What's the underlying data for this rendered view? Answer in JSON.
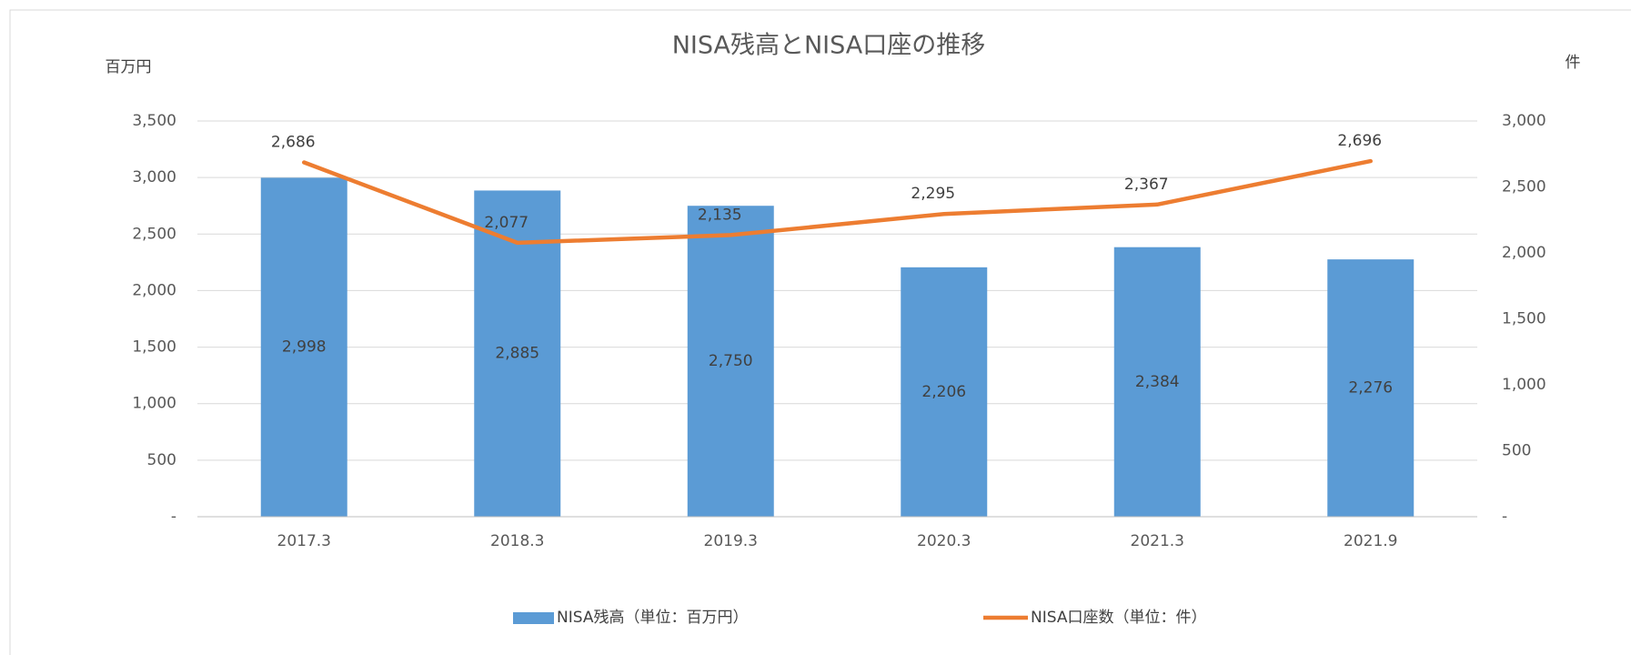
{
  "chart_data": {
    "type": "bar_line",
    "title": "NISA残高とNISA口座の推移",
    "y_label": "百万円",
    "y2_label": "件",
    "categories": [
      "2017.3",
      "2018.3",
      "2019.3",
      "2020.3",
      "2021.3",
      "2021.9"
    ],
    "series": [
      {
        "name": "NISA残高（単位：百万円）",
        "type": "bar",
        "color": "#5b9bd5",
        "values": [
          2998,
          2885,
          2750,
          2206,
          2384,
          2276
        ],
        "value_labels": [
          "2,998",
          "2,885",
          "2,750",
          "2,206",
          "2,384",
          "2,276"
        ]
      },
      {
        "name": "NISA口座数（単位：件）",
        "type": "line",
        "axis": "y2",
        "color": "#ed7d31",
        "values": [
          2686,
          2077,
          2135,
          2295,
          2367,
          2696
        ],
        "value_labels": [
          "2,686",
          "2,077",
          "2,135",
          "2,295",
          "2,367",
          "2,696"
        ]
      }
    ],
    "ylim": [
      0,
      3500
    ],
    "yticks": [
      {
        "value": 0,
        "label": "-"
      },
      500,
      {
        "value": 1000,
        "label": "1,000"
      },
      {
        "value": 1500,
        "label": "1,500"
      },
      {
        "value": 2000,
        "label": "2,000"
      },
      {
        "value": 2500,
        "label": "2,500"
      },
      {
        "value": 3000,
        "label": "3,000"
      },
      {
        "value": 3500,
        "label": "3,500"
      }
    ],
    "y2lim": [
      0,
      3000
    ],
    "y2ticks": [
      {
        "value": 0,
        "label": "-"
      },
      500,
      {
        "value": 1000,
        "label": "1,000"
      },
      {
        "value": 1500,
        "label": "1,500"
      },
      {
        "value": 2000,
        "label": "2,000"
      },
      {
        "value": 2500,
        "label": "2,500"
      },
      {
        "value": 3000,
        "label": "3,000"
      }
    ],
    "grid": true,
    "legend": "bottom"
  }
}
